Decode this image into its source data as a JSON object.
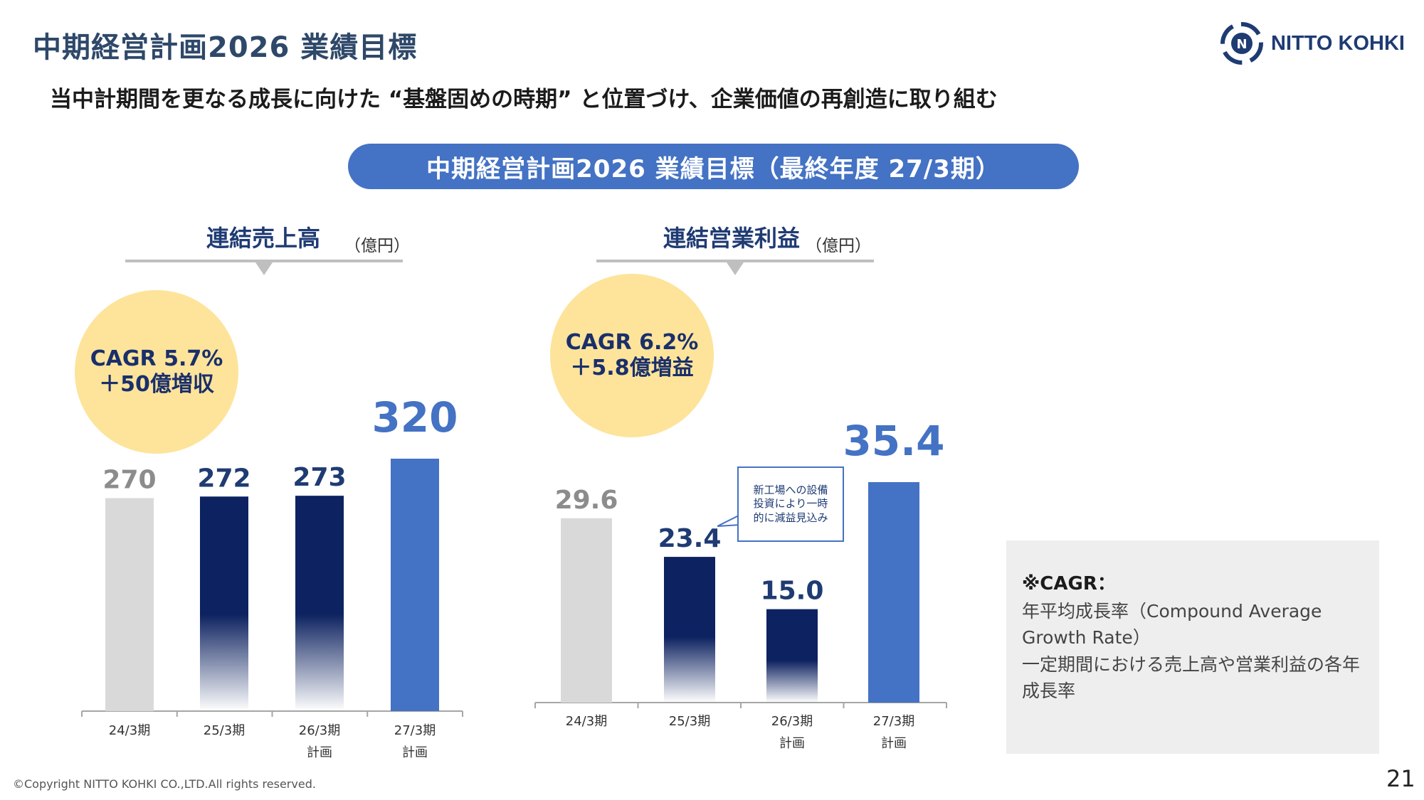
{
  "header": {
    "title": "中期経営計画2026 業績目標",
    "subtitle": "当中計期間を更なる成長に向けた “基盤固めの時期” と位置づけ、企業価値の再創造に取り組む",
    "banner": "中期経営計画2026 業績目標（最終年度 27/3期）",
    "logo_text": "NITTO KOHKI"
  },
  "colors": {
    "actual_gray": "#d9d9d9",
    "actual_navy": "#0d2260",
    "plan_blue": "#4472c4",
    "cagr_circle": "#fde49a"
  },
  "chart_data": [
    {
      "type": "bar",
      "title": "連結売上高",
      "unit": "（億円）",
      "categories": [
        "24/3期",
        "25/3期",
        "26/3期\n計画",
        "27/3期\n計画"
      ],
      "values": [
        270,
        272,
        273,
        320
      ],
      "value_labels": [
        "270",
        "272",
        "273",
        "320"
      ],
      "bar_colors": [
        "#d9d9d9",
        "navy-gradient",
        "navy-gradient",
        "#4472c4"
      ],
      "label_colors": [
        "#8c8c8c",
        "#1f3b73",
        "#1f3b73",
        "#4472c4"
      ],
      "ylim": [
        0,
        320
      ],
      "cagr": {
        "line1": "CAGR 5.7%",
        "line2": "＋50億増収"
      }
    },
    {
      "type": "bar",
      "title": "連結営業利益",
      "unit": "（億円）",
      "categories": [
        "24/3期",
        "25/3期",
        "26/3期\n計画",
        "27/3期\n計画"
      ],
      "values": [
        29.6,
        23.4,
        15.0,
        35.4
      ],
      "value_labels": [
        "29.6",
        "23.4",
        "15.0",
        "35.4"
      ],
      "bar_colors": [
        "#d9d9d9",
        "navy-gradient",
        "navy-gradient",
        "#4472c4"
      ],
      "label_colors": [
        "#8c8c8c",
        "#1f3b73",
        "#1f3b73",
        "#4472c4"
      ],
      "ylim": [
        0,
        35.4
      ],
      "cagr": {
        "line1": "CAGR 6.2%",
        "line2": "＋5.8億増益"
      },
      "annotation": "新工場への設備\n投資により一時\n的に減益見込み"
    }
  ],
  "note": {
    "title": "※CAGR：",
    "line1": "年平均成長率（Compound Average",
    "line2": "Growth Rate）",
    "line3": "一定期間における売上高や営業利益の各年",
    "line4": "成長率"
  },
  "footer": {
    "copyright": "©Copyright NITTO KOHKI CO.,LTD.All rights reserved.",
    "page_number": "21"
  }
}
